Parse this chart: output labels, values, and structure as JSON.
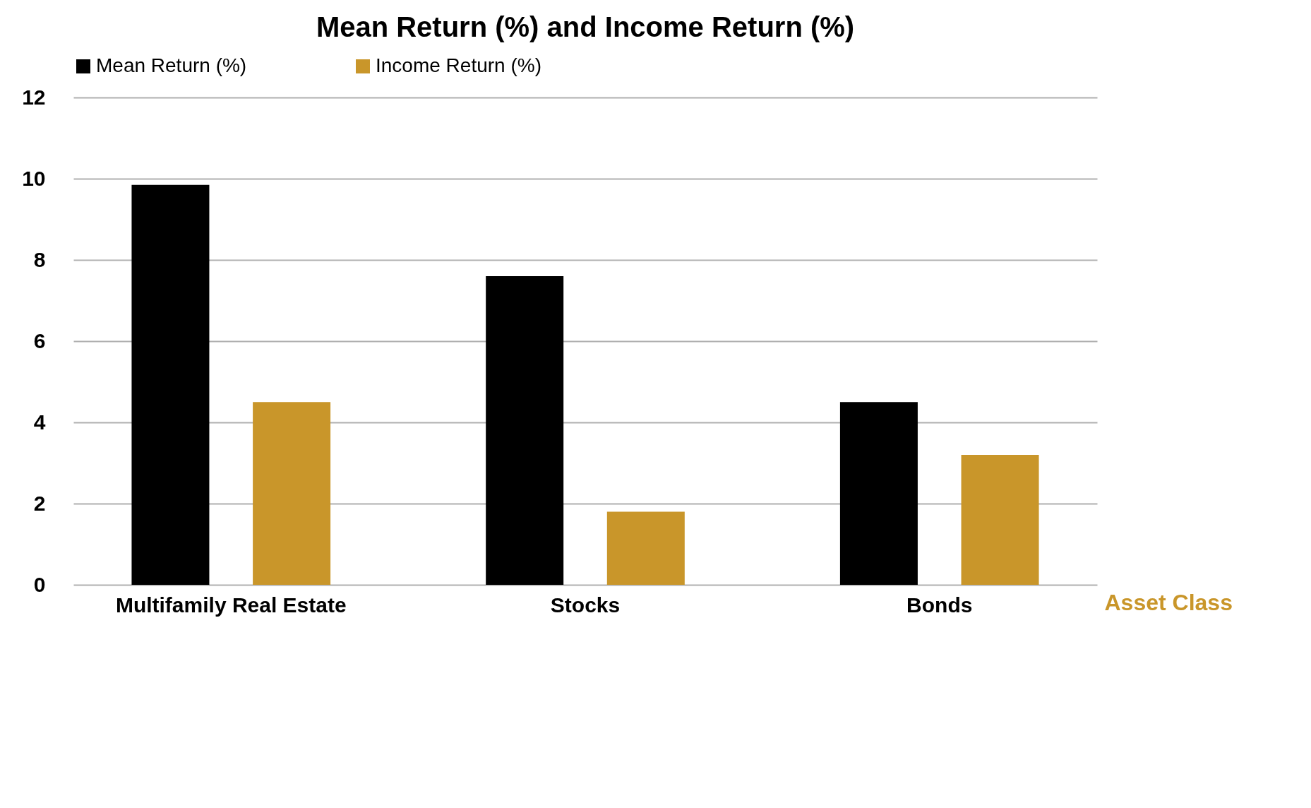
{
  "chart_data": {
    "type": "bar",
    "title": "Mean Return (%) and Income Return (%)",
    "xlabel": "Asset Class",
    "categories": [
      "Multifamily Real Estate",
      "Stocks",
      "Bonds"
    ],
    "series": [
      {
        "name": "Mean Return (%)",
        "color": "#000000",
        "values": [
          9.85,
          7.6,
          4.5
        ]
      },
      {
        "name": "Income Return (%)",
        "color": "#c9962a",
        "values": [
          4.5,
          1.8,
          3.2
        ]
      }
    ],
    "ylim": [
      0,
      12
    ],
    "yticks": [
      0,
      2,
      4,
      6,
      8,
      10,
      12
    ],
    "grid": "y",
    "legend": "top"
  }
}
